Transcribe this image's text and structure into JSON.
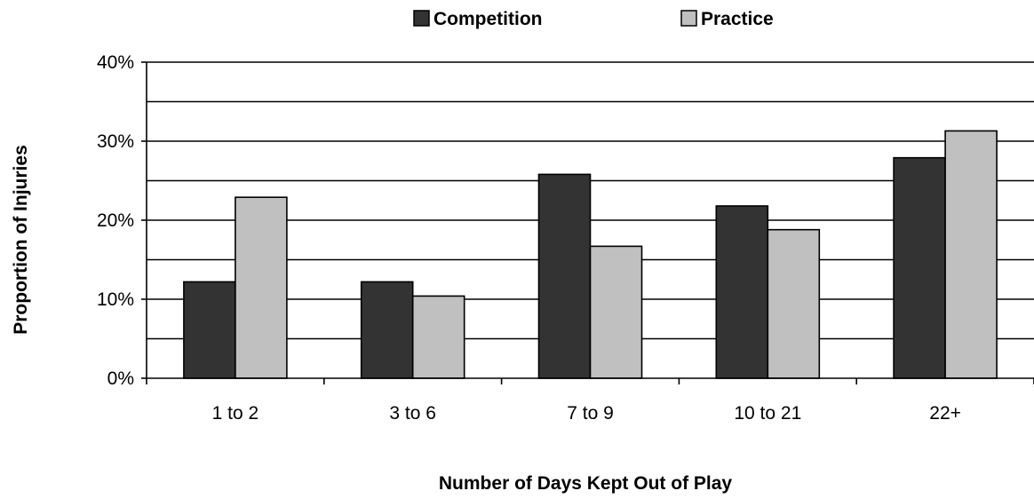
{
  "chart_data": {
    "type": "bar",
    "categories": [
      "1 to 2",
      "3 to 6",
      "7 to 9",
      "10 to 21",
      "22+"
    ],
    "series": [
      {
        "name": "Competition",
        "values": [
          12.2,
          12.2,
          25.8,
          21.8,
          27.9
        ],
        "color": "#333333"
      },
      {
        "name": "Practice",
        "values": [
          22.9,
          10.4,
          16.7,
          18.8,
          31.3
        ],
        "color": "#c0c0c0"
      }
    ],
    "xlabel": "Number of Days Kept Out of Play",
    "ylabel": "Proportion of Injuries",
    "ylim": [
      0,
      40
    ],
    "yticks": [
      "0%",
      "10%",
      "20%",
      "30%",
      "40%"
    ],
    "grid": true,
    "legend_position": "top-center"
  }
}
